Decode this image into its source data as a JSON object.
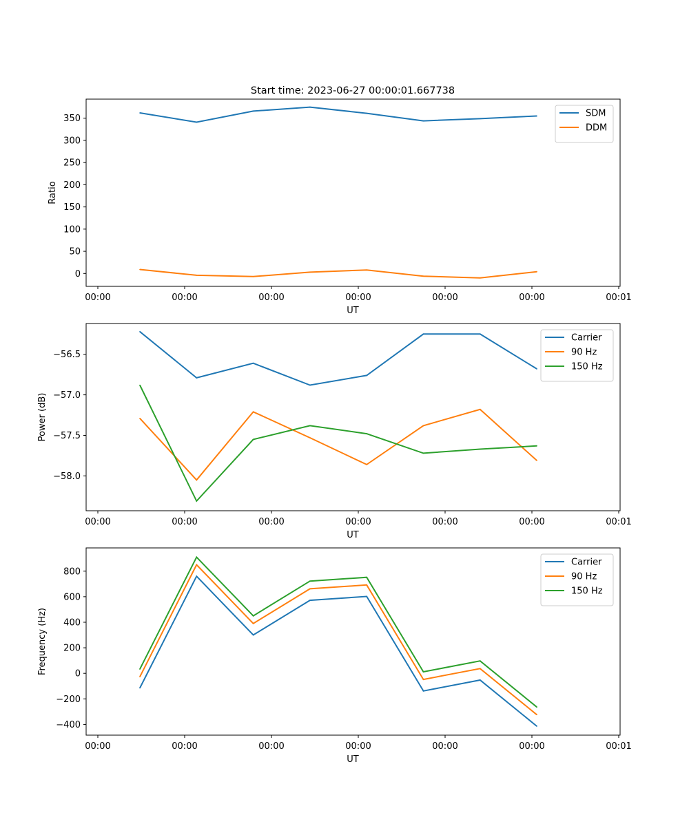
{
  "figure": {
    "title": "Start time: 2023-06-27 00:00:01.667738"
  },
  "chart_data": [
    {
      "type": "line",
      "title": "Start time: 2023-06-27 00:00:01.667738",
      "xlabel": "UT",
      "ylabel": "Ratio",
      "x_tick_labels": [
        "00:00",
        "00:00",
        "00:00",
        "00:00",
        "00:00",
        "00:00",
        "00:01"
      ],
      "y_ticks": [
        0,
        50,
        100,
        150,
        200,
        250,
        300,
        350
      ],
      "y_tick_labels": [
        "0",
        "50",
        "100",
        "150",
        "200",
        "250",
        "300",
        "350"
      ],
      "ylim": [
        -29,
        393
      ],
      "legend": "top-right",
      "grid": false,
      "series": [
        {
          "name": "SDM",
          "color": "#1f77b4",
          "values": [
            362,
            341,
            366,
            375,
            361,
            344,
            349,
            355
          ]
        },
        {
          "name": "DDM",
          "color": "#ff7f0e",
          "values": [
            9,
            -4,
            -7,
            3,
            8,
            -6,
            -10,
            4
          ]
        }
      ]
    },
    {
      "type": "line",
      "xlabel": "UT",
      "ylabel": "Power (dB)",
      "x_tick_labels": [
        "00:00",
        "00:00",
        "00:00",
        "00:00",
        "00:00",
        "00:00",
        "00:01"
      ],
      "y_ticks": [
        -58.0,
        -57.5,
        -57.0,
        -56.5
      ],
      "y_tick_labels": [
        "−58.0",
        "−57.5",
        "−57.0",
        "−56.5"
      ],
      "ylim": [
        -58.43,
        -56.12
      ],
      "legend": "top-right",
      "grid": false,
      "series": [
        {
          "name": "Carrier",
          "color": "#1f77b4",
          "values": [
            -56.22,
            -56.79,
            -56.61,
            -56.88,
            -56.76,
            -56.25,
            -56.25,
            -56.68
          ]
        },
        {
          "name": "90 Hz",
          "color": "#ff7f0e",
          "values": [
            -57.29,
            -58.05,
            -57.21,
            -57.53,
            -57.86,
            -57.38,
            -57.18,
            -57.81
          ]
        },
        {
          "name": "150 Hz",
          "color": "#2ca02c",
          "values": [
            -56.88,
            -58.31,
            -57.55,
            -57.38,
            -57.48,
            -57.72,
            -57.67,
            -57.63
          ]
        }
      ]
    },
    {
      "type": "line",
      "xlabel": "UT",
      "ylabel": "Frequency (Hz)",
      "x_tick_labels": [
        "00:00",
        "00:00",
        "00:00",
        "00:00",
        "00:00",
        "00:00",
        "00:01"
      ],
      "y_ticks": [
        -400,
        -200,
        0,
        200,
        400,
        600,
        800
      ],
      "y_tick_labels": [
        "−400",
        "−200",
        "0",
        "200",
        "400",
        "600",
        "800"
      ],
      "ylim": [
        -484,
        982
      ],
      "legend": "top-right",
      "grid": false,
      "series": [
        {
          "name": "Carrier",
          "color": "#1f77b4",
          "values": [
            -115,
            760,
            300,
            572,
            602,
            -138,
            -53,
            -414
          ]
        },
        {
          "name": "90 Hz",
          "color": "#ff7f0e",
          "values": [
            -27,
            850,
            390,
            662,
            692,
            -48,
            37,
            -324
          ]
        },
        {
          "name": "150 Hz",
          "color": "#2ca02c",
          "values": [
            33,
            910,
            450,
            722,
            752,
            12,
            97,
            -264
          ]
        }
      ]
    }
  ]
}
